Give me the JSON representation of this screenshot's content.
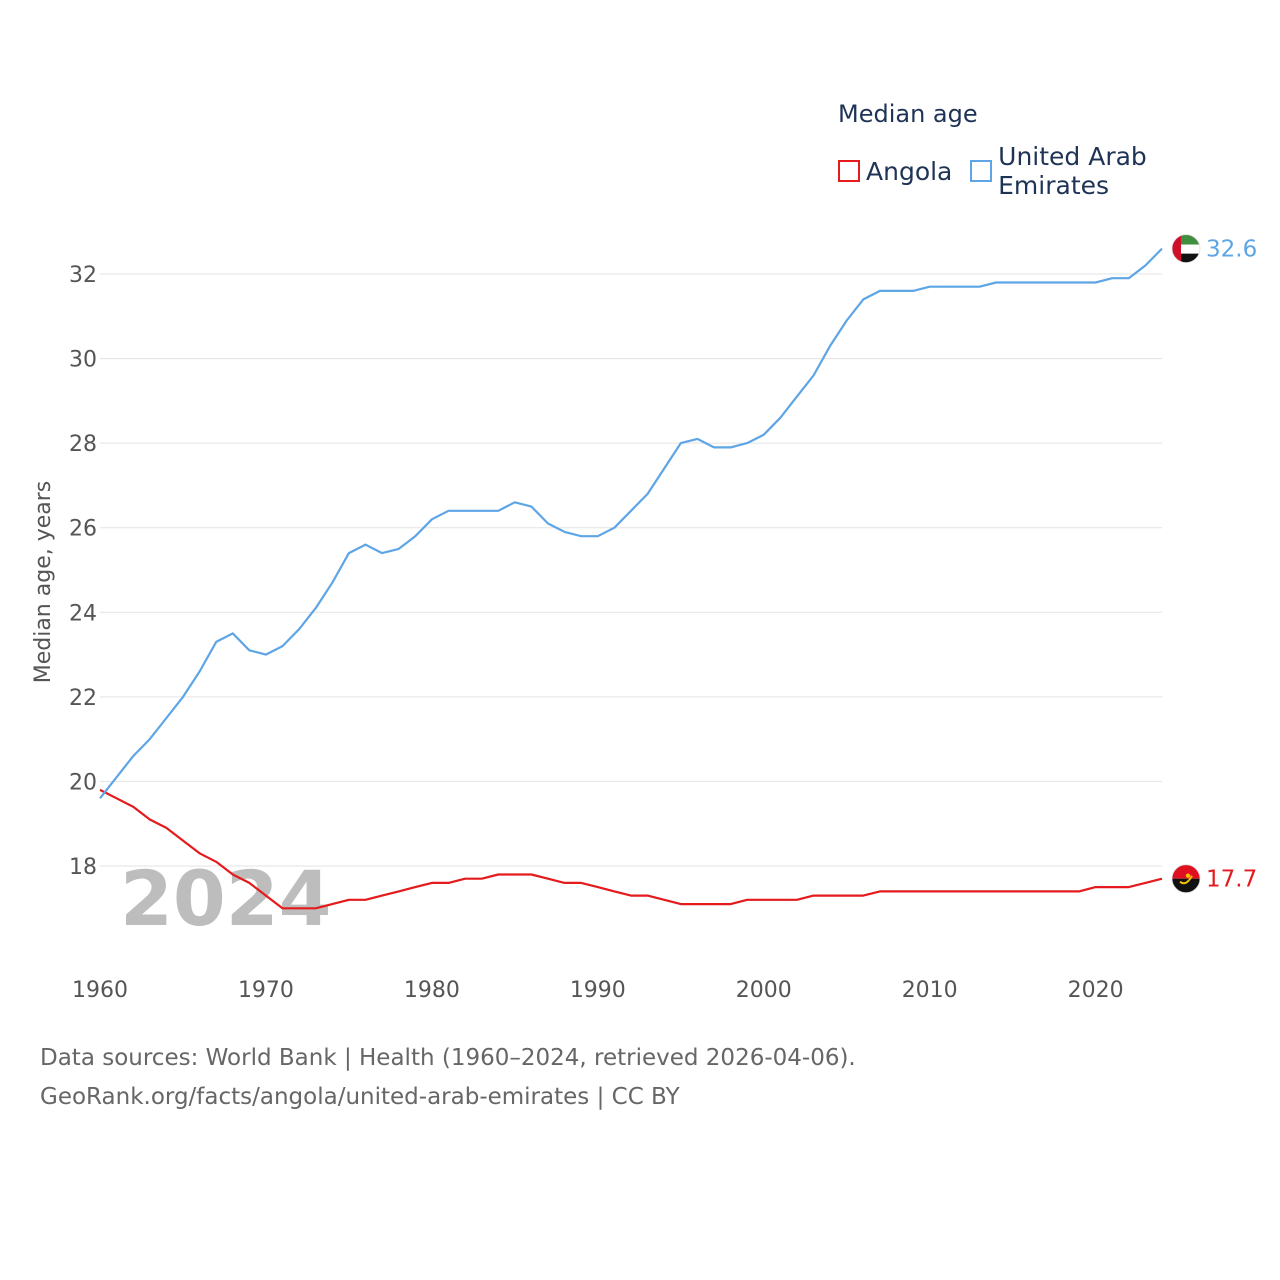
{
  "legend": {
    "title": "Median age",
    "items": [
      {
        "name": "Angola",
        "color": "#e41a1c"
      },
      {
        "name": "United Arab Emirates",
        "color": "#5ea5e6"
      }
    ]
  },
  "footer": {
    "line1": "Data sources: World Bank | Health (1960–2024, retrieved 2026-04-06).",
    "line2": "GeoRank.org/facts/angola/united-arab-emirates | CC BY"
  },
  "chart_data": {
    "type": "line",
    "ylabel": "Median age, years",
    "xlabel": "",
    "year_label": "2024",
    "xlim": [
      1960,
      2024
    ],
    "ylim": [
      16,
      33
    ],
    "x_ticks": [
      1960,
      1970,
      1980,
      1990,
      2000,
      2010,
      2020
    ],
    "y_ticks": [
      18,
      20,
      22,
      24,
      26,
      28,
      30,
      32
    ],
    "x": [
      1960,
      1961,
      1962,
      1963,
      1964,
      1965,
      1966,
      1967,
      1968,
      1969,
      1970,
      1971,
      1972,
      1973,
      1974,
      1975,
      1976,
      1977,
      1978,
      1979,
      1980,
      1981,
      1982,
      1983,
      1984,
      1985,
      1986,
      1987,
      1988,
      1989,
      1990,
      1991,
      1992,
      1993,
      1994,
      1995,
      1996,
      1997,
      1998,
      1999,
      2000,
      2001,
      2002,
      2003,
      2004,
      2005,
      2006,
      2007,
      2008,
      2009,
      2010,
      2011,
      2012,
      2013,
      2014,
      2015,
      2016,
      2017,
      2018,
      2019,
      2020,
      2021,
      2022,
      2023,
      2024
    ],
    "series": [
      {
        "name": "Angola",
        "color": "#e41a1c",
        "end_label": "17.7",
        "values": [
          19.8,
          19.6,
          19.4,
          19.1,
          18.9,
          18.6,
          18.3,
          18.1,
          17.8,
          17.6,
          17.3,
          17.0,
          17.0,
          17.0,
          17.1,
          17.2,
          17.2,
          17.3,
          17.4,
          17.5,
          17.6,
          17.6,
          17.7,
          17.7,
          17.8,
          17.8,
          17.8,
          17.7,
          17.6,
          17.6,
          17.5,
          17.4,
          17.3,
          17.3,
          17.2,
          17.1,
          17.1,
          17.1,
          17.1,
          17.2,
          17.2,
          17.2,
          17.2,
          17.3,
          17.3,
          17.3,
          17.3,
          17.4,
          17.4,
          17.4,
          17.4,
          17.4,
          17.4,
          17.4,
          17.4,
          17.4,
          17.4,
          17.4,
          17.4,
          17.4,
          17.5,
          17.5,
          17.5,
          17.6,
          17.7
        ]
      },
      {
        "name": "United Arab Emirates",
        "color": "#5ea5e6",
        "end_label": "32.6",
        "values": [
          19.6,
          20.1,
          20.6,
          21.0,
          21.5,
          22.0,
          22.6,
          23.3,
          23.5,
          23.1,
          23.0,
          23.2,
          23.6,
          24.1,
          24.7,
          25.4,
          25.6,
          25.4,
          25.5,
          25.8,
          26.2,
          26.4,
          26.4,
          26.4,
          26.4,
          26.6,
          26.5,
          26.1,
          25.9,
          25.8,
          25.8,
          26.0,
          26.4,
          26.8,
          27.4,
          28.0,
          28.1,
          27.9,
          27.9,
          28.0,
          28.2,
          28.6,
          29.1,
          29.6,
          30.3,
          30.9,
          31.4,
          31.6,
          31.6,
          31.6,
          31.7,
          31.7,
          31.7,
          31.7,
          31.8,
          31.8,
          31.8,
          31.8,
          31.8,
          31.8,
          31.8,
          31.9,
          31.9,
          32.2,
          32.6
        ]
      }
    ]
  }
}
